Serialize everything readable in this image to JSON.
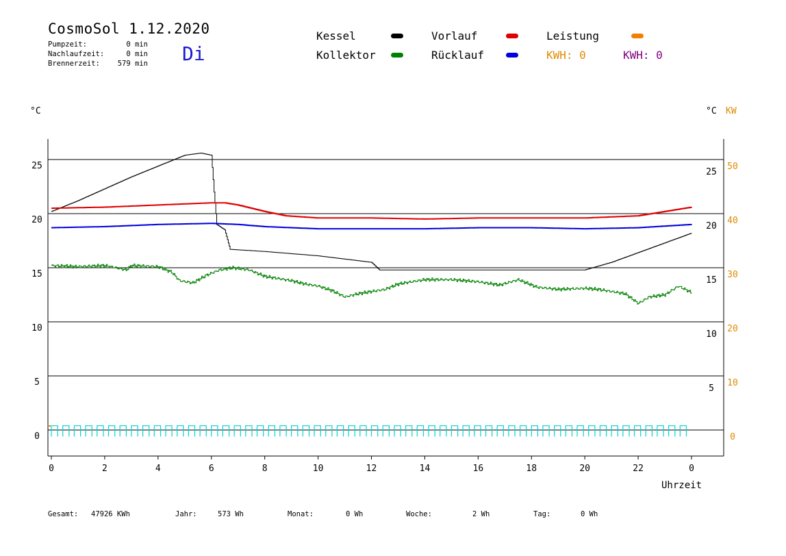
{
  "header": {
    "title": "CosmoSol 1.12.2020",
    "day": "Di",
    "stats": [
      {
        "label": "Pumpzeit:",
        "value": "0 min"
      },
      {
        "label": "Nachlaufzeit:",
        "value": "0 min"
      },
      {
        "label": "Brennerzeit:",
        "value": "579 min"
      }
    ]
  },
  "legend": {
    "items": [
      {
        "label": "Kessel",
        "color": "#000000"
      },
      {
        "label": "Vorlauf",
        "color": "#e00000"
      },
      {
        "label": "Leistung",
        "color": "#f08000"
      },
      {
        "label": "Kollektor",
        "color": "#008000"
      },
      {
        "label": "Rücklauf",
        "color": "#0000e0"
      }
    ],
    "kwh_orange": "KWH: 0",
    "kwh_purple": "KWH: 0",
    "kwh_orange_color": "#e08a00",
    "kwh_purple_color": "#800080"
  },
  "axes": {
    "left_unit": "°C",
    "right_unit_c": "°C",
    "right_unit_kw": "KW",
    "xlabel": "Uhrzeit",
    "left_ticks": [
      "25",
      "20",
      "15",
      "10",
      "5",
      "0"
    ],
    "right_ticks_c": [
      "25",
      "20",
      "15",
      "10",
      "5"
    ],
    "right_ticks_kw": [
      "50",
      "40",
      "30",
      "20",
      "10",
      "0"
    ],
    "x_ticks": [
      "0",
      "2",
      "4",
      "6",
      "8",
      "10",
      "12",
      "14",
      "16",
      "18",
      "20",
      "22",
      "0"
    ]
  },
  "footer": [
    {
      "label": "Gesamt:",
      "value": "47926 KWh"
    },
    {
      "label": "Jahr:",
      "value": "573 Wh"
    },
    {
      "label": "Monat:",
      "value": "0 Wh"
    },
    {
      "label": "Woche:",
      "value": "2 Wh"
    },
    {
      "label": "Tag:",
      "value": "0 Wh"
    }
  ],
  "chart_data": {
    "type": "line",
    "xlabel": "Uhrzeit",
    "ylabel": "°C",
    "xlim": [
      0,
      24
    ],
    "ylim": [
      -2,
      27
    ],
    "grid": true,
    "series": [
      {
        "name": "Kessel",
        "color": "#000000",
        "x": [
          0,
          1,
          2,
          3,
          4,
          5,
          5.6,
          6.0,
          6.1,
          6.2,
          6.5,
          6.7,
          8.0,
          10,
          12.0,
          12.3,
          14,
          16,
          18,
          20.0,
          21,
          22,
          23,
          24
        ],
        "y": [
          20.2,
          21.2,
          22.3,
          23.4,
          24.4,
          25.4,
          25.6,
          25.4,
          22,
          19,
          18.5,
          16.7,
          16.5,
          16.1,
          15.5,
          14.8,
          14.8,
          14.8,
          14.8,
          14.8,
          15.5,
          16.4,
          17.3,
          18.2
        ]
      },
      {
        "name": "Vorlauf",
        "color": "#e00000",
        "x": [
          0,
          2,
          4,
          6,
          6.5,
          7,
          8,
          8.8,
          10,
          12,
          14,
          16,
          18,
          20,
          22,
          24
        ],
        "y": [
          20.5,
          20.6,
          20.8,
          21.0,
          21.0,
          20.8,
          20.2,
          19.8,
          19.6,
          19.6,
          19.5,
          19.6,
          19.6,
          19.6,
          19.8,
          20.6
        ]
      },
      {
        "name": "Rücklauf",
        "color": "#0000e0",
        "x": [
          0,
          2,
          4,
          6,
          7,
          8,
          10,
          12,
          14,
          16,
          18,
          20,
          22,
          24
        ],
        "y": [
          18.7,
          18.8,
          19.0,
          19.1,
          19.0,
          18.8,
          18.6,
          18.6,
          18.6,
          18.7,
          18.7,
          18.6,
          18.7,
          19.0
        ]
      },
      {
        "name": "Kollektor",
        "color": "#008000",
        "x": [
          0,
          1,
          2,
          2.8,
          3,
          4,
          4.5,
          4.8,
          5.3,
          5.8,
          6.3,
          6.8,
          7.4,
          8.0,
          9.0,
          9.5,
          10,
          10.5,
          11.0,
          11.5,
          12.0,
          12.5,
          13.0,
          14,
          15,
          16,
          16.8,
          17.5,
          18.2,
          19,
          20,
          20.5,
          21,
          21.5,
          22.0,
          22.4,
          23,
          23.5,
          24
        ],
        "y": [
          15.2,
          15.1,
          15.2,
          14.8,
          15.2,
          15.1,
          14.6,
          13.8,
          13.6,
          14.3,
          14.8,
          15.0,
          14.8,
          14.2,
          13.8,
          13.5,
          13.3,
          12.9,
          12.3,
          12.6,
          12.8,
          13.0,
          13.5,
          13.9,
          13.9,
          13.7,
          13.4,
          13.9,
          13.2,
          13.0,
          13.1,
          13.0,
          12.8,
          12.6,
          11.7,
          12.3,
          12.5,
          13.3,
          12.7
        ]
      }
    ],
    "pulse": {
      "name": "Pumpe",
      "color": "#00d4d4",
      "count": 56,
      "y_low": -0.6,
      "y_high": 0.4
    }
  }
}
